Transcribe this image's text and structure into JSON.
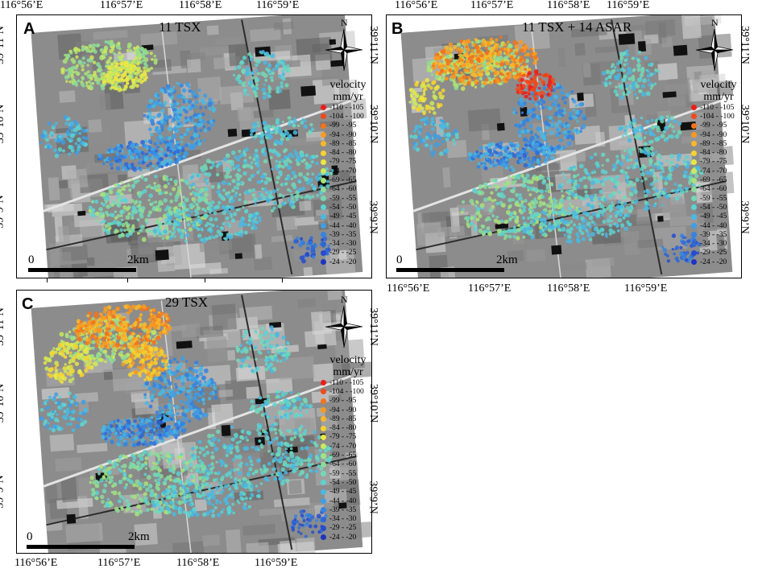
{
  "map_data": {
    "lon_labels": [
      "116°56’E",
      "116°57’E",
      "116°58’E",
      "116°59’E"
    ],
    "lat_labels": [
      "39°11’N",
      "39°10’N",
      "39°9’N"
    ],
    "north_label": "N",
    "scale_start": "0",
    "scale_end": "2km",
    "legend_title_1": "velocity",
    "legend_title_2": "mm/yr",
    "legend": [
      {
        "label": "-110 - -105",
        "color": "#e8201c"
      },
      {
        "label": "-104 - -100",
        "color": "#f04a1a"
      },
      {
        "label": "-99 - -95",
        "color": "#f4731c"
      },
      {
        "label": "-94 - -90",
        "color": "#f79a22"
      },
      {
        "label": "-89 - -85",
        "color": "#f9b829"
      },
      {
        "label": "-84 - -80",
        "color": "#f8d22e"
      },
      {
        "label": "-79 - -75",
        "color": "#ece742"
      },
      {
        "label": "-74 - -70",
        "color": "#cde85c"
      },
      {
        "label": "-69 - -65",
        "color": "#a9e27a"
      },
      {
        "label": "-64 - -60",
        "color": "#8cdc99"
      },
      {
        "label": "-59 - -55",
        "color": "#74d8b6"
      },
      {
        "label": "-54 - -50",
        "color": "#5ed2d0"
      },
      {
        "label": "-49 - -45",
        "color": "#4ab9e2"
      },
      {
        "label": "-44 - -40",
        "color": "#3f9ee4"
      },
      {
        "label": "-39 - -35",
        "color": "#3683de"
      },
      {
        "label": "-34 - -30",
        "color": "#2e67d6"
      },
      {
        "label": "-29 - -25",
        "color": "#264ccc"
      },
      {
        "label": "-24 - -20",
        "color": "#1d33c2"
      }
    ],
    "panels": [
      {
        "letter": "A",
        "title": "11 TSX"
      },
      {
        "letter": "B",
        "title": "11 TSX + 14 ASAR"
      },
      {
        "letter": "C",
        "title": "29 TSX"
      }
    ]
  }
}
